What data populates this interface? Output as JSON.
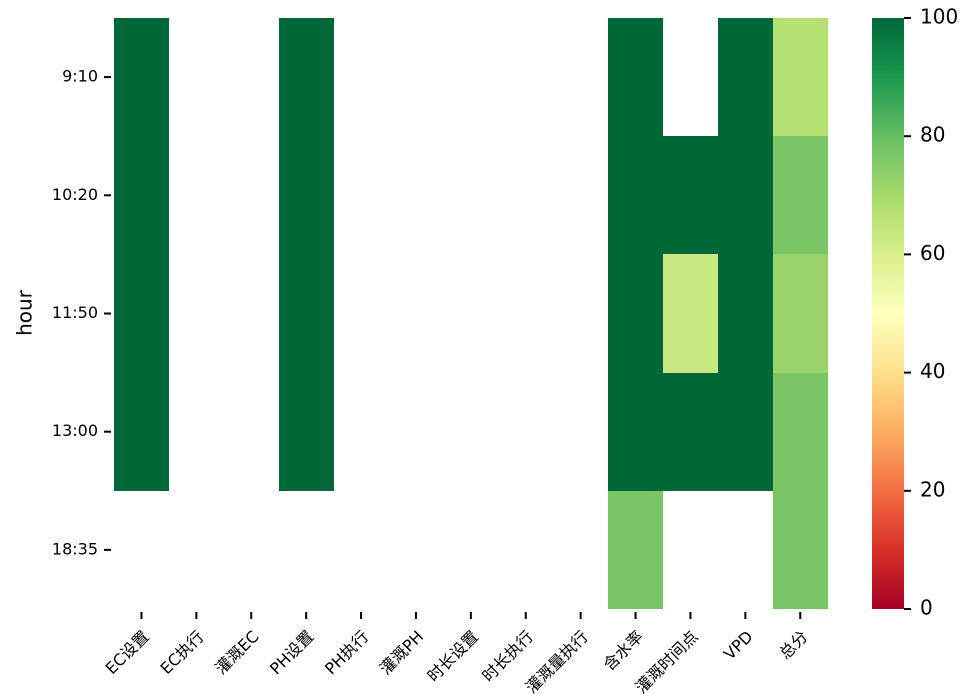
{
  "chart_data": {
    "type": "heatmap",
    "ylabel": "hour",
    "xlabel": "",
    "x_categories": [
      "EC设置",
      "EC执行",
      "灌溉EC",
      "PH设置",
      "PH执行",
      "灌溉PH",
      "时长设置",
      "时长执行",
      "灌溉量执行",
      "含水率",
      "灌溉时间点",
      "VPD",
      "总分"
    ],
    "y_categories": [
      "9:10",
      "10:20",
      "11:50",
      "13:00",
      "18:35"
    ],
    "row_tick_labels": [
      "9:10",
      "10:20",
      "11:50",
      "13:00",
      "18:35"
    ],
    "values": [
      [
        100,
        null,
        null,
        100,
        null,
        null,
        null,
        null,
        null,
        100,
        null,
        100,
        67
      ],
      [
        100,
        null,
        null,
        100,
        null,
        null,
        null,
        null,
        null,
        100,
        100,
        100,
        77
      ],
      [
        100,
        null,
        null,
        100,
        null,
        null,
        null,
        null,
        null,
        100,
        63,
        100,
        72
      ],
      [
        100,
        null,
        null,
        100,
        null,
        null,
        null,
        null,
        null,
        100,
        100,
        100,
        77
      ],
      [
        null,
        null,
        null,
        null,
        null,
        null,
        null,
        null,
        null,
        77,
        null,
        null,
        77
      ]
    ],
    "colorbar": {
      "min": 0,
      "max": 100,
      "ticks": [
        "0",
        "20",
        "40",
        "60",
        "80",
        "100"
      ],
      "colormap": "RdYlGn"
    }
  }
}
